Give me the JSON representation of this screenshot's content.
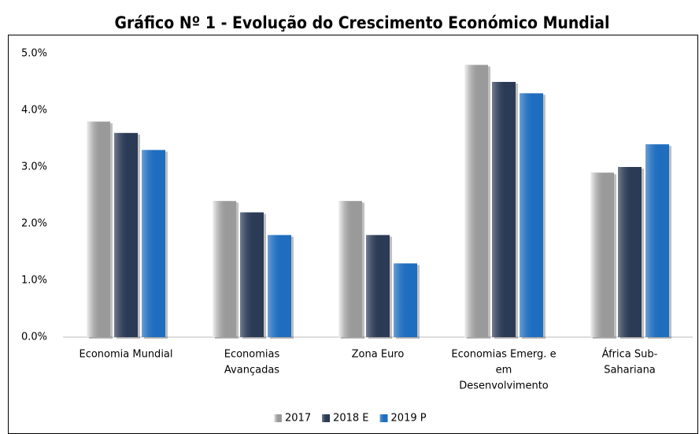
{
  "chart_data": {
    "type": "bar",
    "title": "Gráfico Nº 1 - Evolução do Crescimento Económico Mundial",
    "categories": [
      [
        "Economia Mundial"
      ],
      [
        "Economias",
        "Avançadas"
      ],
      [
        "Zona Euro"
      ],
      [
        "Economias Emerg. e",
        "em",
        "Desenvolvimento"
      ],
      [
        "África Sub-",
        "Sahariana"
      ]
    ],
    "series": [
      {
        "name": "2017",
        "color": "#9a9a9a",
        "values": [
          3.8,
          2.4,
          2.4,
          4.8,
          2.9
        ]
      },
      {
        "name": "2018 E",
        "color": "#2b3a55",
        "values": [
          3.6,
          2.2,
          1.8,
          4.5,
          3.0
        ]
      },
      {
        "name": "2019 P",
        "color": "#1f6dbf",
        "values": [
          3.3,
          1.8,
          1.3,
          4.3,
          3.4
        ]
      }
    ],
    "ylim": [
      0,
      5
    ],
    "yticks": [
      {
        "value": 0,
        "label": "0.0%"
      },
      {
        "value": 1,
        "label": "1.0%"
      },
      {
        "value": 2,
        "label": "2.0%"
      },
      {
        "value": 3,
        "label": "3.0%"
      },
      {
        "value": 4,
        "label": "4.0%"
      },
      {
        "value": 5,
        "label": "5.0%"
      }
    ],
    "grid": false,
    "legend": "bottom"
  }
}
